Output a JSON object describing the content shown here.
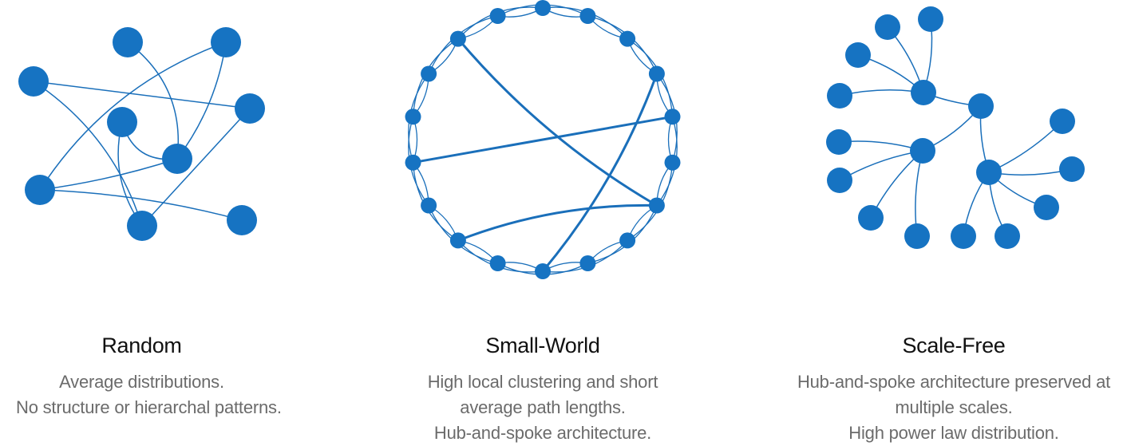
{
  "colors": {
    "node": "#1673c2",
    "edge": "#1a6fba",
    "title_text": "#111111",
    "description_text": "#6b6b6b",
    "background": "#ffffff"
  },
  "networks": [
    {
      "title": "Random",
      "description": [
        "Average distributions.",
        "No structure or hierarchal patterns."
      ]
    },
    {
      "title": "Small-World",
      "description": [
        "High local clustering and short",
        "average path lengths.",
        "Hub-and-spoke architecture."
      ]
    },
    {
      "title": "Scale-Free",
      "description": [
        "Hub-and-spoke architecture preserved at",
        "multiple scales.",
        "High power law distribution."
      ]
    }
  ]
}
